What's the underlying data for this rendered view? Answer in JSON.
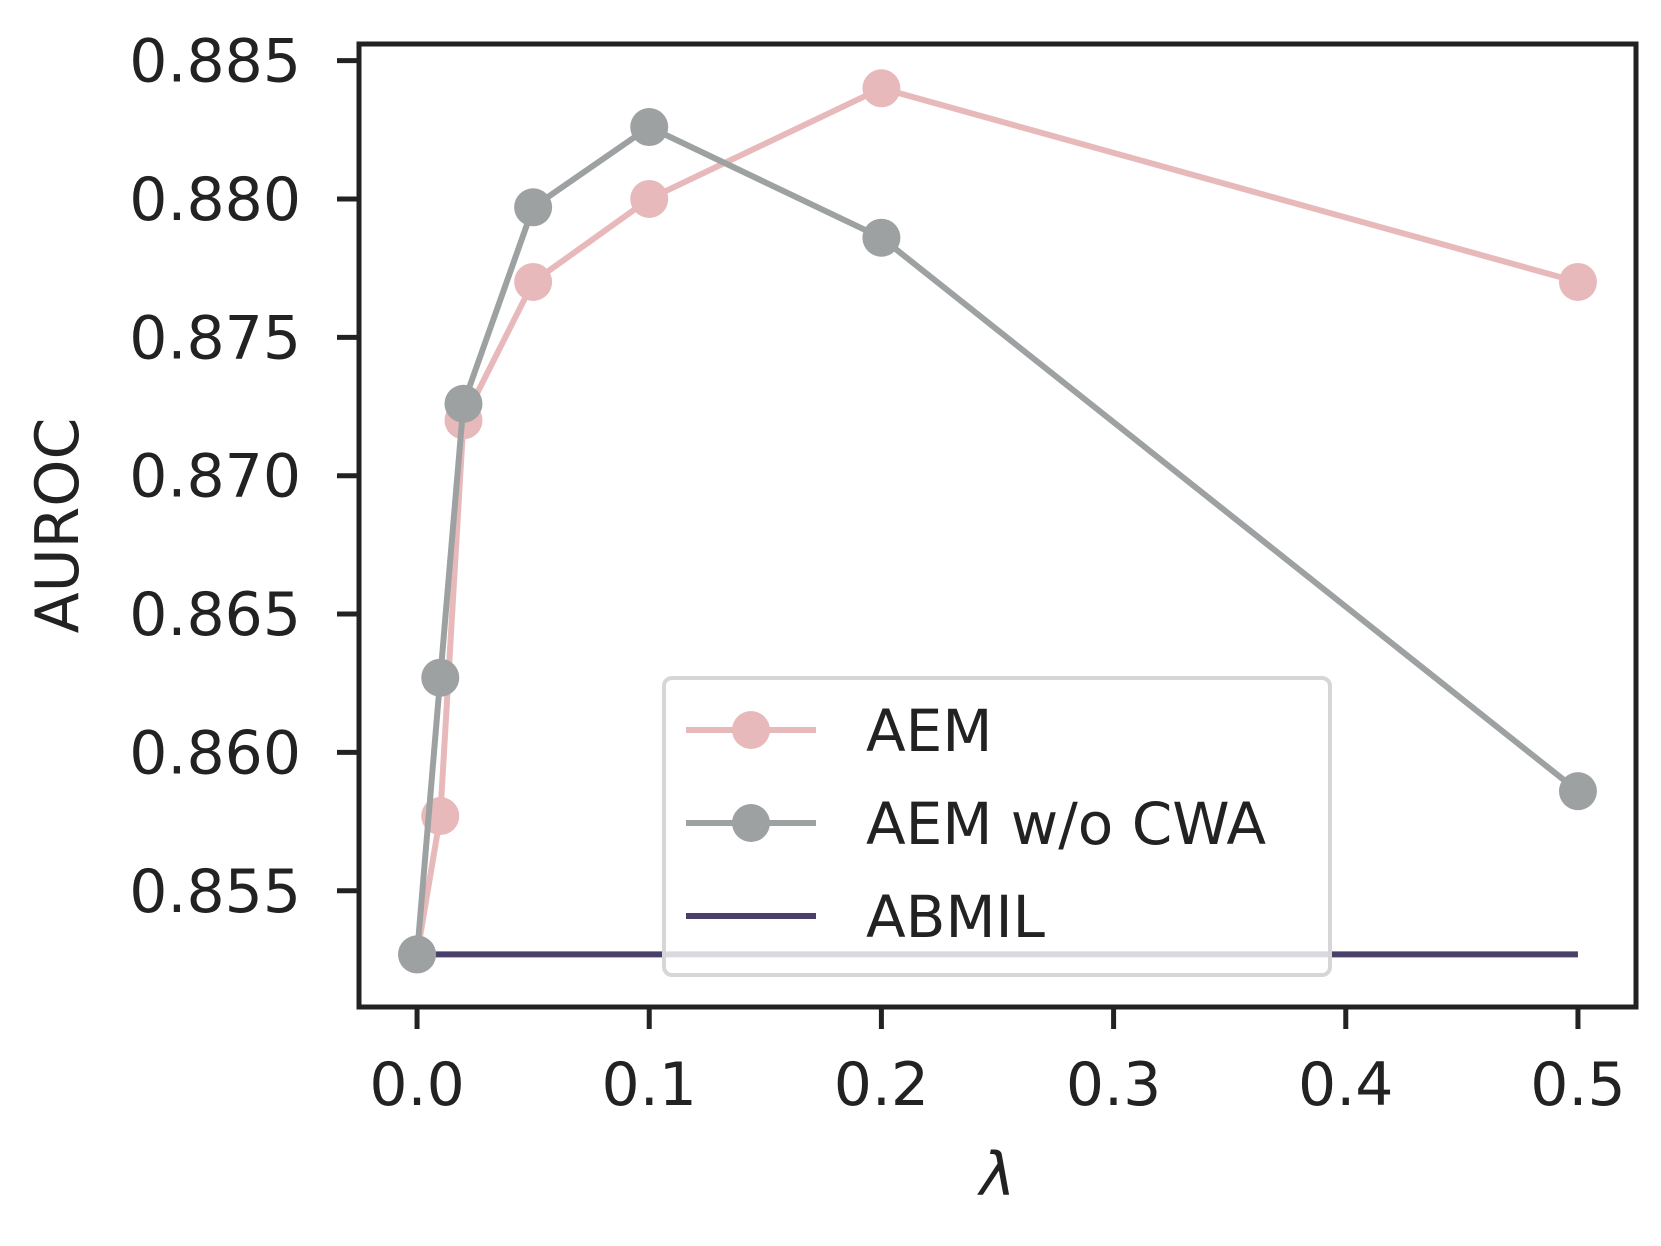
{
  "chart_data": {
    "type": "line",
    "title": "",
    "xlabel": "λ",
    "ylabel": "AUROC",
    "xlim": [
      -0.025,
      0.525
    ],
    "ylim": [
      0.8508,
      0.8856
    ],
    "xticks": [
      0.0,
      0.1,
      0.2,
      0.3,
      0.4,
      0.5
    ],
    "xtick_labels": [
      "0.0",
      "0.1",
      "0.2",
      "0.3",
      "0.4",
      "0.5"
    ],
    "yticks": [
      0.855,
      0.86,
      0.865,
      0.87,
      0.875,
      0.88,
      0.885
    ],
    "ytick_labels": [
      "0.855",
      "0.860",
      "0.865",
      "0.870",
      "0.875",
      "0.880",
      "0.885"
    ],
    "grid": false,
    "legend_position": "lower-center",
    "series": [
      {
        "name": "AEM",
        "color": "#e8b9ba",
        "marker": "circle",
        "x": [
          0.0,
          0.01,
          0.02,
          0.05,
          0.1,
          0.2,
          0.5
        ],
        "y": [
          0.8527,
          0.8577,
          0.872,
          0.877,
          0.88,
          0.884,
          0.877
        ]
      },
      {
        "name": "AEM w/o CWA",
        "color": "#9da1a2",
        "marker": "circle",
        "x": [
          0.0,
          0.01,
          0.02,
          0.05,
          0.1,
          0.2,
          0.5
        ],
        "y": [
          0.8527,
          0.8627,
          0.8726,
          0.8797,
          0.8826,
          0.8786,
          0.8586
        ]
      },
      {
        "name": "ABMIL",
        "color": "#4a3f6b",
        "marker": "none",
        "x": [
          0.0,
          0.5
        ],
        "y": [
          0.8527,
          0.8527
        ]
      }
    ],
    "legend": [
      {
        "label": "AEM"
      },
      {
        "label": "AEM w/o CWA"
      },
      {
        "label": "ABMIL"
      }
    ]
  }
}
